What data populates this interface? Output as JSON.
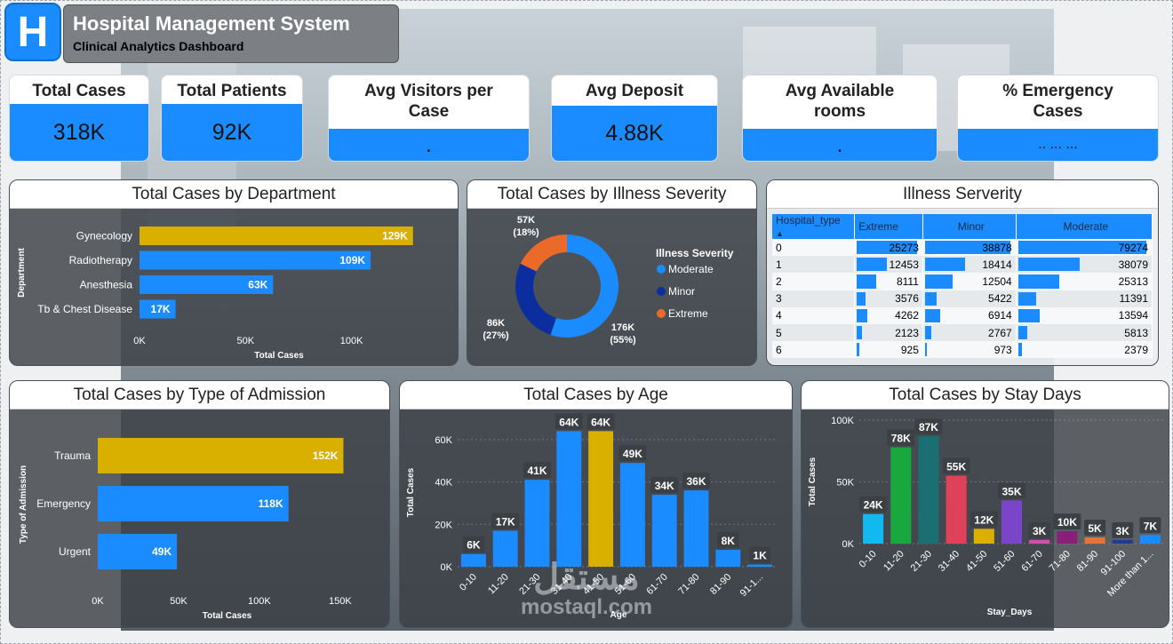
{
  "header": {
    "logo_letter": "H",
    "title": "Hospital Management System",
    "subtitle": "Clinical Analytics Dashboard"
  },
  "kpis": [
    {
      "label": "Total Cases",
      "value": "318K"
    },
    {
      "label": "Total Patients",
      "value": "92K"
    },
    {
      "label": "Avg Visitors per Case",
      "value": "."
    },
    {
      "label": "Avg Deposit",
      "value": "4.88K"
    },
    {
      "label": "Avg Available rooms",
      "value": "."
    },
    {
      "label": "% Emergency Cases",
      "value": "..  ...  ..."
    }
  ],
  "colors": {
    "accent": "#1a8cff",
    "highlight": "#d9b000",
    "dark_blue": "#0c2d9e",
    "orange": "#ea6a2a"
  },
  "dept_chart": {
    "title": "Total Cases by Department",
    "xlabel": "Total Cases",
    "ylabel": "Department",
    "chart_data": {
      "type": "bar",
      "orientation": "horizontal",
      "categories": [
        "Gynecology",
        "Radiotherapy",
        "Anesthesia",
        "Tb & Chest Disease"
      ],
      "values": [
        129,
        109,
        63,
        17
      ],
      "labels": [
        "129K",
        "109K",
        "63K",
        "17K"
      ],
      "ticks": [
        "0K",
        "50K",
        "100K"
      ],
      "xlim": [
        0,
        140
      ],
      "highlight_index": 0
    }
  },
  "severity_chart": {
    "title": "Total Cases by Illness Severity",
    "legend_title": "Illness Severity",
    "chart_data": {
      "type": "pie",
      "donut": true,
      "categories": [
        "Moderate",
        "Minor",
        "Extreme"
      ],
      "values": [
        176,
        86,
        57
      ],
      "labels": [
        "176K (55%)",
        "86K (27%)",
        "57K (18%)"
      ],
      "label_lines": [
        [
          "176K",
          "(55%)"
        ],
        [
          "86K",
          "(27%)"
        ],
        [
          "57K",
          "(18%)"
        ]
      ],
      "colors": [
        "#1a8cff",
        "#0c2d9e",
        "#ea6a2a"
      ]
    }
  },
  "matrix": {
    "title": "Illness Serverity",
    "columns": [
      "Hospital_type",
      "Extreme",
      "Minor",
      "Moderate"
    ],
    "chart_data": {
      "type": "table",
      "rows": [
        {
          "type": "0",
          "extreme": 25273,
          "minor": 38878,
          "moderate": 79274
        },
        {
          "type": "1",
          "extreme": 12453,
          "minor": 18414,
          "moderate": 38079
        },
        {
          "type": "2",
          "extreme": 8111,
          "minor": 12504,
          "moderate": 25313
        },
        {
          "type": "3",
          "extreme": 3576,
          "minor": 5422,
          "moderate": 11391
        },
        {
          "type": "4",
          "extreme": 4262,
          "minor": 6914,
          "moderate": 13594
        },
        {
          "type": "5",
          "extreme": 2123,
          "minor": 2767,
          "moderate": 5813
        },
        {
          "type": "6",
          "extreme": 925,
          "minor": 973,
          "moderate": 2379
        }
      ]
    }
  },
  "admission_chart": {
    "title": "Total Cases by Type of Admission",
    "xlabel": "Total Cases",
    "ylabel": "Type of Admission",
    "chart_data": {
      "type": "bar",
      "orientation": "horizontal",
      "categories": [
        "Trauma",
        "Emergency",
        "Urgent"
      ],
      "values": [
        152,
        118,
        49
      ],
      "labels": [
        "152K",
        "118K",
        "49K"
      ],
      "ticks": [
        "0K",
        "50K",
        "100K",
        "150K"
      ],
      "xlim": [
        0,
        160
      ],
      "highlight_index": 0
    }
  },
  "age_chart": {
    "title": "Total Cases by Age",
    "xlabel": "Age",
    "ylabel": "Total Cases",
    "chart_data": {
      "type": "bar",
      "categories": [
        "0-10",
        "11-20",
        "21-30",
        "31-40",
        "41-50",
        "51-60",
        "61-70",
        "71-80",
        "81-90",
        "91-1..."
      ],
      "values": [
        6,
        17,
        41,
        64,
        64,
        49,
        34,
        36,
        8,
        1
      ],
      "labels": [
        "6K",
        "17K",
        "41K",
        "64K",
        "64K",
        "49K",
        "34K",
        "36K",
        "8K",
        "1K"
      ],
      "ticks": [
        "0K",
        "20K",
        "40K",
        "60K"
      ],
      "ylim": [
        0,
        70
      ],
      "highlight_index": 4
    }
  },
  "stay_chart": {
    "title": "Total Cases by Stay Days",
    "xlabel": "Stay_Days",
    "ylabel": "Total Cases",
    "chart_data": {
      "type": "bar",
      "categories": [
        "0-10",
        "11-20",
        "21-30",
        "31-40",
        "41-50",
        "51-60",
        "61-70",
        "71-80",
        "81-90",
        "91-100",
        "More than 1..."
      ],
      "values": [
        24,
        78,
        87,
        55,
        12,
        35,
        3,
        10,
        5,
        3,
        7
      ],
      "labels": [
        "24K",
        "78K",
        "87K",
        "55K",
        "12K",
        "35K",
        "3K",
        "10K",
        "5K",
        "3K",
        "7K"
      ],
      "colors": [
        "#11b9f0",
        "#18a83d",
        "#1b6f73",
        "#e0415a",
        "#d9b000",
        "#7a45c8",
        "#d24fb0",
        "#8a1f7a",
        "#e8733a",
        "#1f3b8f",
        "#1a8cff"
      ],
      "ticks": [
        "0K",
        "50K",
        "100K"
      ],
      "ylim": [
        0,
        100
      ]
    }
  },
  "watermark": {
    "line1": "مستقل",
    "line2": "mostaql.com"
  }
}
